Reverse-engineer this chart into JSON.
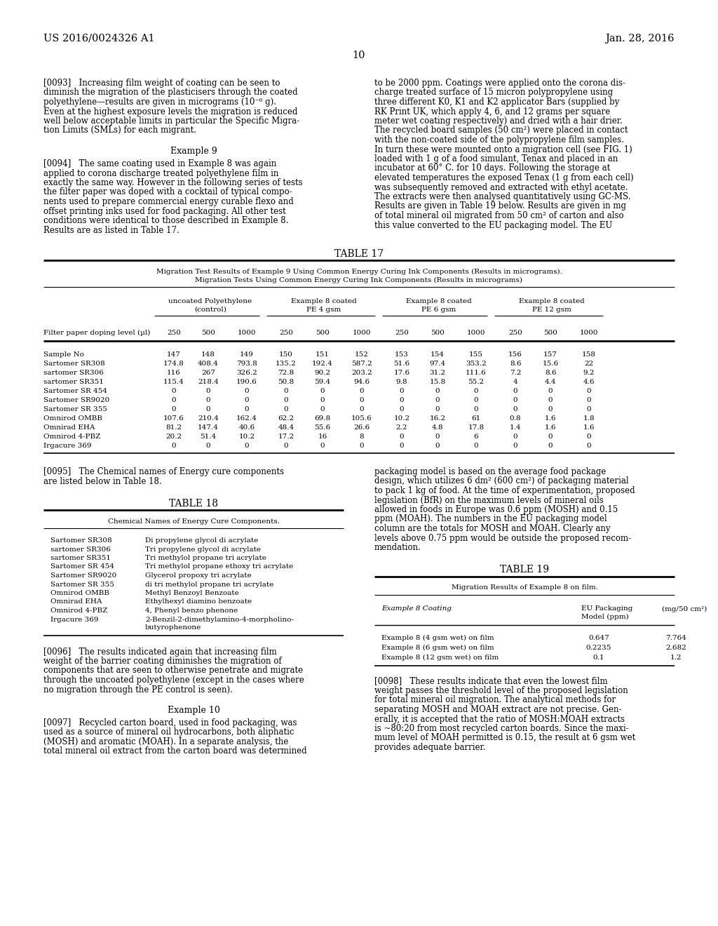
{
  "patent_number": "US 2016/0024326 A1",
  "patent_date": "Jan. 28, 2016",
  "page_number": "10",
  "background_color": "#ffffff",
  "table17_rows": [
    [
      "Sample No",
      "147",
      "148",
      "149",
      "150",
      "151",
      "152",
      "153",
      "154",
      "155",
      "156",
      "157",
      "158"
    ],
    [
      "Sartomer SR308",
      "174.8",
      "408.4",
      "793.8",
      "135.2",
      "192.4",
      "587.2",
      "51.6",
      "97.4",
      "353.2",
      "8.6",
      "15.6",
      "22"
    ],
    [
      "sartomer SR306",
      "116",
      "267",
      "326.2",
      "72.8",
      "90.2",
      "203.2",
      "17.6",
      "31.2",
      "111.6",
      "7.2",
      "8.6",
      "9.2"
    ],
    [
      "sartomer SR351",
      "115.4",
      "218.4",
      "190.6",
      "50.8",
      "59.4",
      "94.6",
      "9.8",
      "15.8",
      "55.2",
      "4",
      "4.4",
      "4.6"
    ],
    [
      "Sartomer SR 454",
      "0",
      "0",
      "0",
      "0",
      "0",
      "0",
      "0",
      "0",
      "0",
      "0",
      "0",
      "0"
    ],
    [
      "Sartomer SR9020",
      "0",
      "0",
      "0",
      "0",
      "0",
      "0",
      "0",
      "0",
      "0",
      "0",
      "0",
      "0"
    ],
    [
      "Sartomer SR 355",
      "0",
      "0",
      "0",
      "0",
      "0",
      "0",
      "0",
      "0",
      "0",
      "0",
      "0",
      "0"
    ],
    [
      "Omnirod OMBB",
      "107.6",
      "210.4",
      "162.4",
      "62.2",
      "69.8",
      "105.6",
      "10.2",
      "16.2",
      "61",
      "0.8",
      "1.6",
      "1.8"
    ],
    [
      "Omnirad EHA",
      "81.2",
      "147.4",
      "40.6",
      "48.4",
      "55.6",
      "26.6",
      "2.2",
      "4.8",
      "17.8",
      "1.4",
      "1.6",
      "1.6"
    ],
    [
      "Omnirod 4-PBZ",
      "20.2",
      "51.4",
      "10.2",
      "17.2",
      "16",
      "8",
      "0",
      "0",
      "6",
      "0",
      "0",
      "0"
    ],
    [
      "Irgacure 369",
      "0",
      "0",
      "0",
      "0",
      "0",
      "0",
      "0",
      "0",
      "0",
      "0",
      "0",
      "0"
    ]
  ],
  "table18_rows": [
    [
      "Sartomer SR308",
      "Di propylene glycol di acrylate"
    ],
    [
      "sartomer SR306",
      "Tri propylene glycol di acrylate"
    ],
    [
      "sartomer SR351",
      "Tri methylol propane tri acrylate"
    ],
    [
      "Sartomer SR 454",
      "Tri methylol propane ethoxy tri acrylate"
    ],
    [
      "Sartomer SR9020",
      "Glycerol propoxy tri acrylate"
    ],
    [
      "Sartomer SR 355",
      "di tri methylol propane tri acrylate"
    ],
    [
      "Omnirod OMBB",
      "Methyl Benzoyl Benzoate"
    ],
    [
      "Omnirad EHA",
      "Ethylhexyl diamino benzoate"
    ],
    [
      "Omnirod 4-PBZ",
      "4, Phenyl benzo phenone"
    ],
    [
      "Irgacure 369",
      "2-Benzil-2-dimethylamino-4-morpholino-\nbutyrophenone"
    ]
  ],
  "table19_rows": [
    [
      "Example 8 (4 gsm wet) on film",
      "0.647",
      "7.764"
    ],
    [
      "Example 8 (6 gsm wet) on film",
      "0.2235",
      "2.682"
    ],
    [
      "Example 8 (12 gsm wet) on film",
      "0.1",
      "1.2"
    ]
  ]
}
